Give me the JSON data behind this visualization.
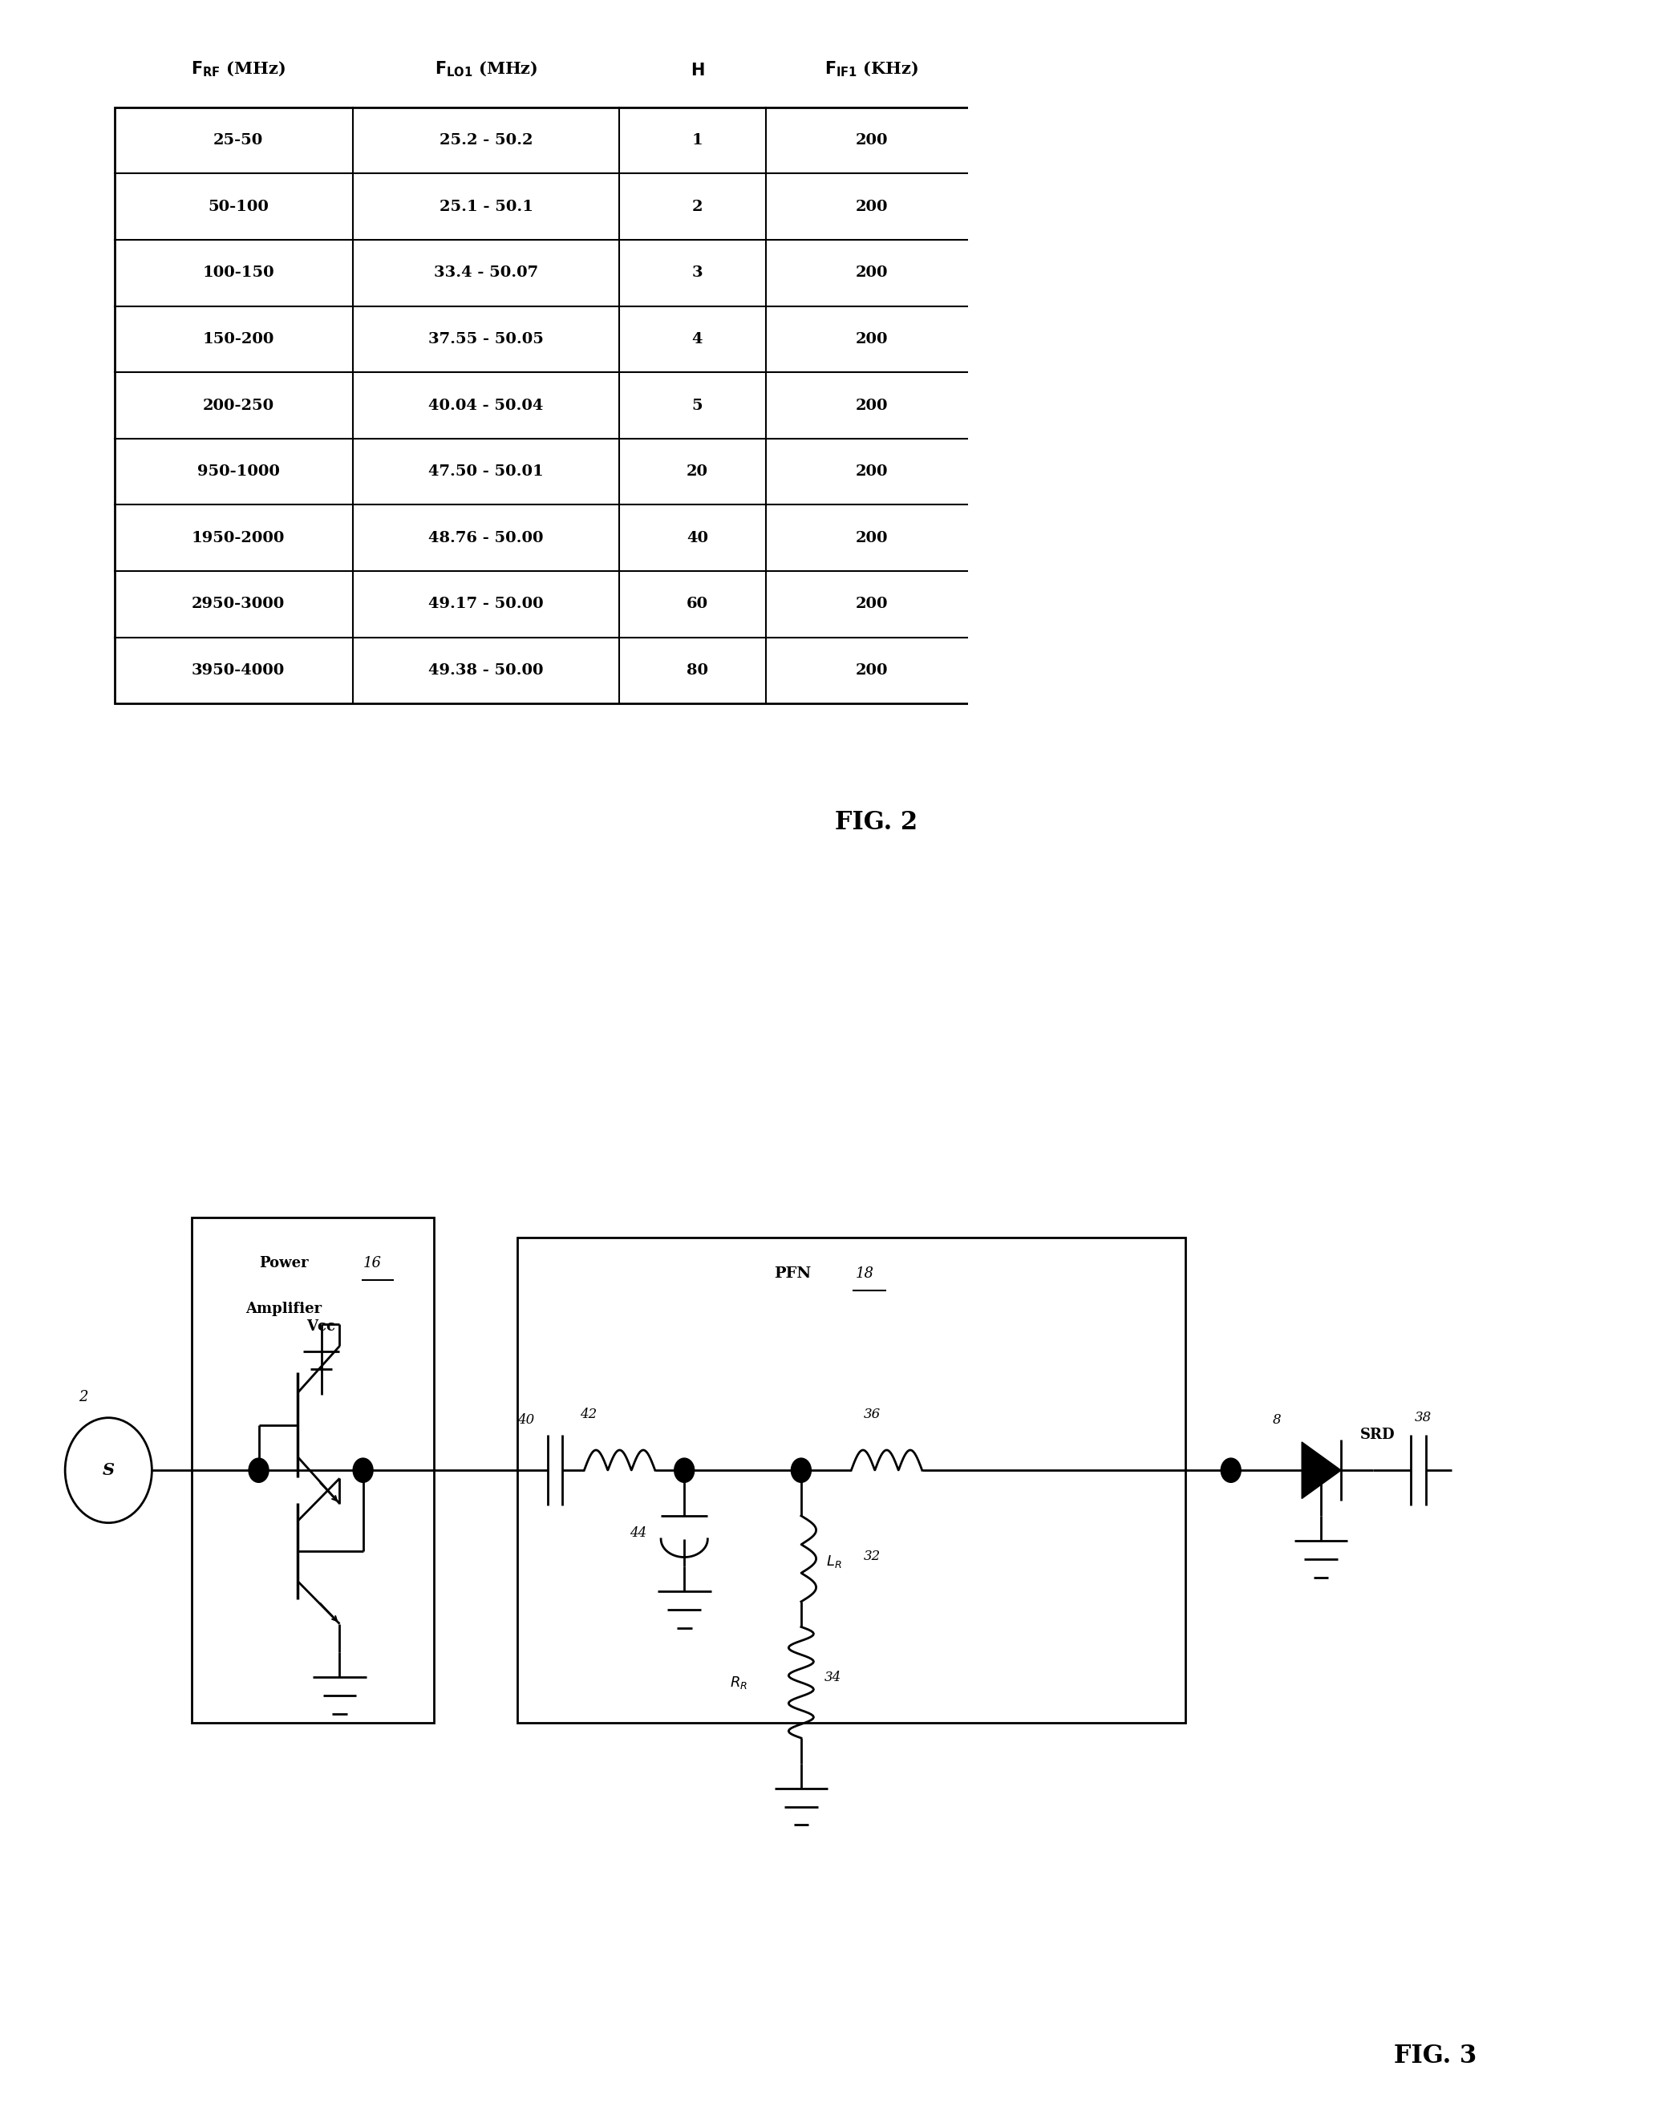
{
  "fig2_title_cols": [
    "F_RF (MHz)",
    "F_LO1 (MHz)",
    "H",
    "F_IF1 (KHz)"
  ],
  "fig2_rows": [
    [
      "25-50",
      "25.2 - 50.2",
      "1",
      "200"
    ],
    [
      "50-100",
      "25.1 - 50.1",
      "2",
      "200"
    ],
    [
      "100-150",
      "33.4 - 50.07",
      "3",
      "200"
    ],
    [
      "150-200",
      "37.55 - 50.05",
      "4",
      "200"
    ],
    [
      "200-250",
      "40.04 - 50.04",
      "5",
      "200"
    ],
    [
      "950-1000",
      "47.50 - 50.01",
      "20",
      "200"
    ],
    [
      "1950-2000",
      "48.76 - 50.00",
      "40",
      "200"
    ],
    [
      "2950-3000",
      "49.17 - 50.00",
      "60",
      "200"
    ],
    [
      "3950-4000",
      "49.38 - 50.00",
      "80",
      "200"
    ]
  ],
  "fig2_label": "FIG. 2",
  "fig3_label": "FIG. 3",
  "background": "#ffffff",
  "line_color": "#000000"
}
